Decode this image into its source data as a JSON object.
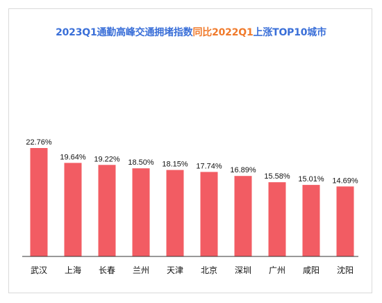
{
  "chart_data": {
    "type": "bar",
    "title_parts": [
      {
        "text": "2023Q1通勤高峰交通拥堵指数",
        "color": "#3a6fd8"
      },
      {
        "text": "同比2022Q1",
        "color": "#f07a2b"
      },
      {
        "text": "上涨TOP10城市",
        "color": "#3a6fd8"
      }
    ],
    "categories": [
      "武汉",
      "上海",
      "长春",
      "兰州",
      "天津",
      "北京",
      "深圳",
      "广州",
      "咸阳",
      "沈阳"
    ],
    "values": [
      22.76,
      19.64,
      19.22,
      18.5,
      18.15,
      17.74,
      16.89,
      15.58,
      15.01,
      14.69
    ],
    "value_labels": [
      "22.76%",
      "19.64%",
      "19.22%",
      "18.50%",
      "18.15%",
      "17.74%",
      "16.89%",
      "15.58%",
      "15.01%",
      "14.69%"
    ],
    "bar_color": "#f25c63",
    "ylim": [
      0,
      22.76
    ],
    "grid": false,
    "legend": "none"
  }
}
